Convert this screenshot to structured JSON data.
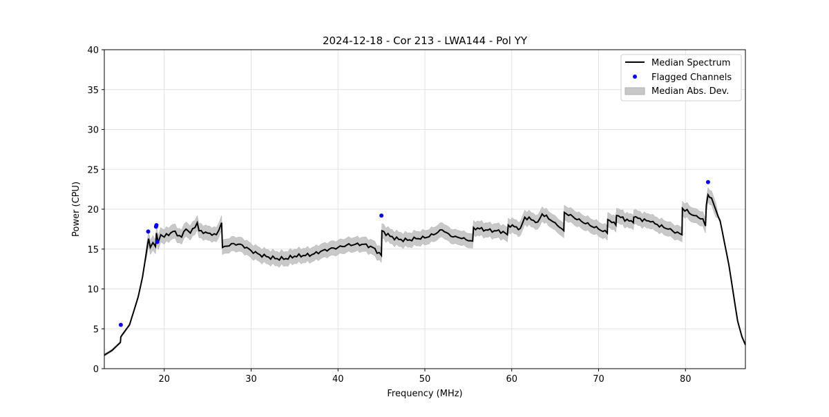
{
  "chart_data": {
    "type": "line",
    "title": "2024-12-18 - Cor 213 - LWA144 - Pol YY",
    "xlabel": "Frequency (MHz)",
    "ylabel": "Power (CPU)",
    "xlim": [
      13.1,
      86.9
    ],
    "ylim": [
      0,
      40
    ],
    "xticks": [
      20,
      30,
      40,
      50,
      60,
      70,
      80
    ],
    "yticks": [
      0,
      5,
      10,
      15,
      20,
      25,
      30,
      35,
      40
    ],
    "grid": true,
    "legend_position": "top-right",
    "legend": [
      "Median Spectrum",
      "Flagged Channels",
      "Median Abs. Dev."
    ],
    "colors": {
      "median": "#000000",
      "flagged": "#0000ff",
      "mad": "#c8c8c8"
    },
    "series": [
      {
        "name": "Median Spectrum",
        "x": [
          13.1,
          14,
          14.95,
          15.0,
          16,
          17,
          17.5,
          18,
          18.2,
          18.4,
          18.7,
          19,
          19.1,
          19.3,
          19.6,
          20,
          21,
          22,
          22.5,
          23,
          23.8,
          24,
          25,
          26,
          26.6,
          26.7,
          28,
          29,
          30,
          31,
          32,
          33,
          34,
          35,
          36,
          37,
          38,
          39,
          40,
          41,
          42,
          43,
          44,
          45,
          45.05,
          46,
          47,
          48,
          49,
          50,
          51,
          52,
          53,
          54,
          55.5,
          55.6,
          57,
          58,
          59,
          59.5,
          59.6,
          61,
          61.5,
          63,
          63.5,
          65,
          66,
          66.05,
          68,
          70,
          71,
          71.05,
          72,
          72.05,
          74,
          74.05,
          76,
          78,
          79.6,
          79.65,
          81,
          82,
          82.3,
          82.4,
          82.6,
          83,
          84,
          85,
          86,
          86.5,
          86.9
        ],
        "y": [
          1.7,
          2.3,
          3.3,
          4.0,
          5.5,
          9,
          11.5,
          15,
          16.3,
          15.2,
          15.8,
          15.3,
          17.0,
          15.8,
          16.8,
          16.5,
          17.2,
          16.5,
          17.5,
          17,
          18.3,
          17.3,
          17.0,
          16.8,
          18.3,
          15.2,
          15.7,
          15.5,
          14.8,
          14.3,
          14.0,
          13.8,
          13.8,
          14.1,
          14.2,
          14.3,
          14.7,
          15,
          15.2,
          15.5,
          15.6,
          15.6,
          15.2,
          14.2,
          17.3,
          16.6,
          16.2,
          16.1,
          16.3,
          16.4,
          16.8,
          17.4,
          16.6,
          16.4,
          16.0,
          17.7,
          17.4,
          17.3,
          17.2,
          16.8,
          18.0,
          17.6,
          19.0,
          18.4,
          19.4,
          18.3,
          17.3,
          19.6,
          18.5,
          17.5,
          17.0,
          18.7,
          18.0,
          19.2,
          18.3,
          19.0,
          18.4,
          17.5,
          16.8,
          20.1,
          19.2,
          18.8,
          17.9,
          20.5,
          21.8,
          21.4,
          18.5,
          13,
          6,
          4,
          3
        ],
        "mad": 0.9
      },
      {
        "name": "Flagged Channels",
        "x": [
          15.0,
          18.15,
          19.05,
          19.1,
          19.2,
          45.0,
          82.6
        ],
        "y": [
          5.5,
          17.2,
          17.8,
          18.0,
          15.9,
          19.2,
          23.4
        ]
      }
    ]
  }
}
